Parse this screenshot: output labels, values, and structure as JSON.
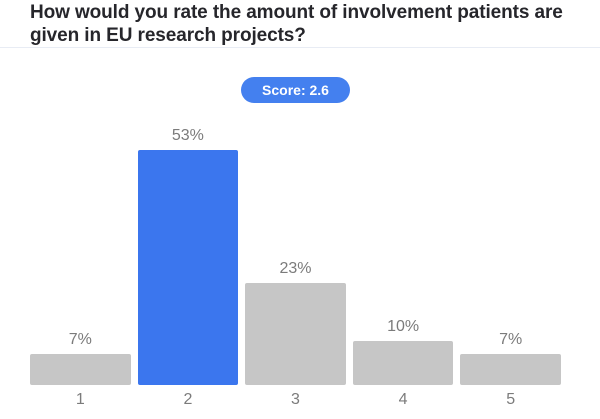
{
  "header": {
    "title": "How would you rate the amount of involvement patients are given in EU research projects?"
  },
  "score_badge": {
    "label": "Score: 2.6"
  },
  "chart_data": {
    "type": "bar",
    "title": "How would you rate the amount of involvement patients are given in EU research projects?",
    "categories": [
      "1",
      "2",
      "3",
      "4",
      "5"
    ],
    "values": [
      7,
      53,
      23,
      10,
      7
    ],
    "value_labels": [
      "7%",
      "53%",
      "23%",
      "10%",
      "7%"
    ],
    "unit": "%",
    "score": 2.6,
    "highlighted_category": "2",
    "highlighted_index": 1,
    "xlabel": "",
    "ylabel": "",
    "ylim": [
      0,
      60
    ],
    "grid": false,
    "legend": false,
    "colors": {
      "bar_default": "#c6c6c6",
      "bar_highlight": "#3b76ee",
      "badge_background": "#4480ef",
      "badge_text": "#ffffff",
      "label_text": "#7b7b7b",
      "title_text": "#26262b",
      "divider": "#e8ecf4"
    }
  }
}
